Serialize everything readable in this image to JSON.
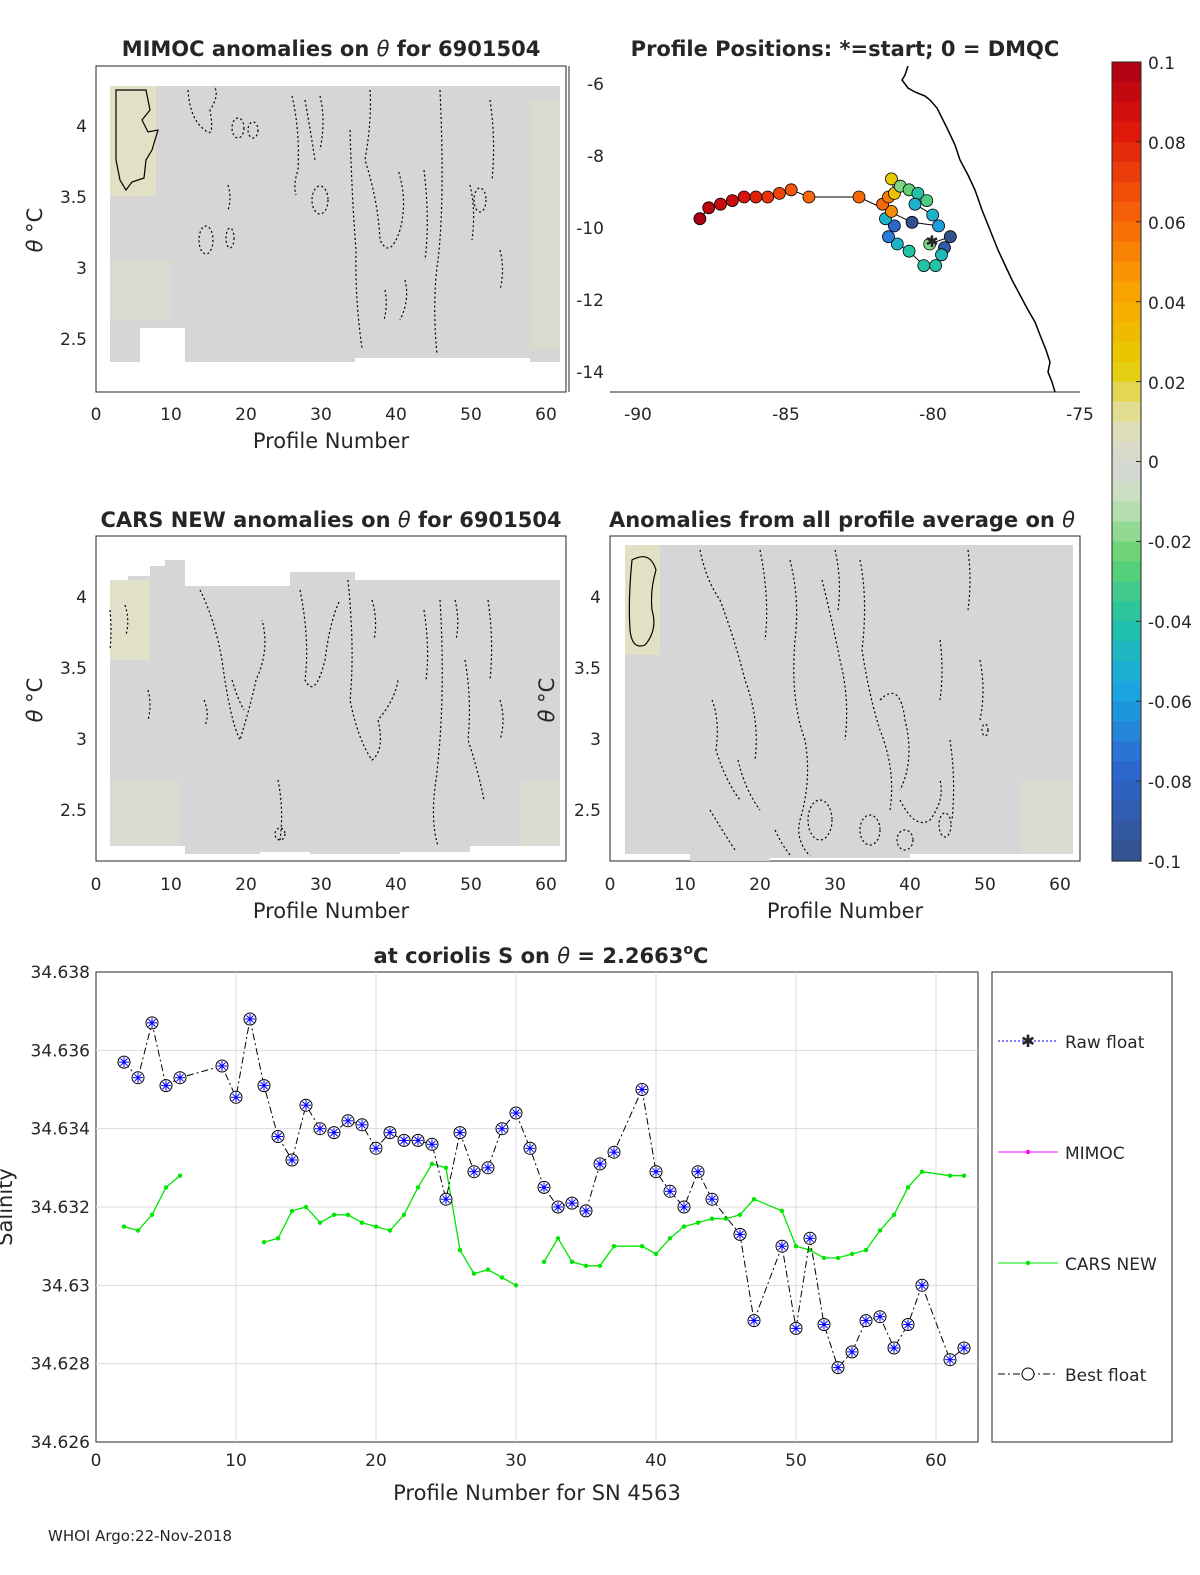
{
  "footer": "WHOI Argo:22-Nov-2018",
  "colors": {
    "axis": "#262626",
    "grid": "#dcdcdc",
    "field": "#d6d6d6",
    "warm": "#e6e3c0"
  },
  "panels": {
    "mimoc": {
      "title_prefix": "MIMOC anomalies on ",
      "title_var": "θ",
      "title_suffix": "  for 6901504",
      "ylabel_var": "θ",
      "ylabel_unit": "°C",
      "xlabel": "Profile Number",
      "xticks": [
        "0",
        "10",
        "20",
        "30",
        "40",
        "50",
        "60"
      ],
      "yticks": [
        "2.5",
        "3",
        "3.5",
        "4"
      ]
    },
    "positions": {
      "title": "Profile Positions: *=start; 0 = DMQC",
      "xticks": [
        "-90",
        "-85",
        "-80",
        "-75"
      ],
      "yticks": [
        "-6",
        "-8",
        "-10",
        "-12",
        "-14"
      ]
    },
    "cars": {
      "title_prefix": "CARS NEW anomalies on ",
      "title_var": "θ",
      "title_suffix": " for 6901504",
      "ylabel_var": "θ",
      "ylabel_unit": "°C",
      "xlabel": "Profile Number",
      "xticks": [
        "0",
        "10",
        "20",
        "30",
        "40",
        "50",
        "60"
      ],
      "yticks": [
        "2.5",
        "3",
        "3.5",
        "4"
      ]
    },
    "allavg": {
      "title_prefix": "Anomalies from all profile average on ",
      "title_var": "θ",
      "ylabel_var": "θ",
      "ylabel_unit": "°C",
      "xlabel": "Profile Number",
      "xticks": [
        "0",
        "10",
        "20",
        "30",
        "40",
        "50",
        "60"
      ],
      "yticks": [
        "2.5",
        "3",
        "3.5",
        "4"
      ]
    },
    "colorbar": {
      "labels": [
        "0.1",
        "0.08",
        "0.06",
        "0.04",
        "0.02",
        "0",
        "-0.02",
        "-0.04",
        "-0.06",
        "-0.08",
        "-0.1"
      ]
    }
  },
  "chart_data": {
    "type": "line",
    "title_prefix": "at coriolis S on ",
    "title_var": "θ",
    "title_eq": " = 2.2663",
    "title_unit_sup": "o",
    "title_unit": "C",
    "xlabel": "Profile Number for SN 4563",
    "ylabel": "Salinity",
    "xlim": [
      0,
      63
    ],
    "ylim": [
      34.626,
      34.638
    ],
    "xticks": [
      0,
      10,
      20,
      30,
      40,
      50,
      60
    ],
    "yticks": [
      34.626,
      34.628,
      34.63,
      34.632,
      34.634,
      34.636,
      34.638
    ],
    "ytick_labels": [
      "34.626",
      "34.628",
      "34.63",
      "34.632",
      "34.634",
      "34.636",
      "34.638"
    ],
    "grid": true,
    "legend_position": "right",
    "legend": [
      "Raw float",
      "MIMOC",
      "CARS NEW",
      "Best float"
    ],
    "series": [
      {
        "name": "Best float",
        "color": "#000000",
        "x": [
          2,
          3,
          4,
          5,
          6,
          9,
          10,
          11,
          12,
          13,
          14,
          15,
          16,
          17,
          18,
          19,
          20,
          21,
          22,
          23,
          24,
          25,
          26,
          27,
          28,
          29,
          30,
          31,
          32,
          33,
          34,
          35,
          36,
          37,
          39,
          40,
          41,
          42,
          43,
          44,
          46,
          47,
          49,
          50,
          51,
          52,
          53,
          54,
          55,
          56,
          57,
          58,
          59,
          61,
          62
        ],
        "values": [
          34.6357,
          34.6353,
          34.6367,
          34.6351,
          34.6353,
          34.6356,
          34.6348,
          34.6368,
          34.6351,
          34.6338,
          34.6332,
          34.6346,
          34.634,
          34.6339,
          34.6342,
          34.6341,
          34.6335,
          34.6339,
          34.6337,
          34.6337,
          34.6336,
          34.6322,
          34.6339,
          34.6329,
          34.633,
          34.634,
          34.6344,
          34.6335,
          34.6325,
          34.632,
          34.6321,
          34.6319,
          34.6331,
          34.6334,
          34.635,
          34.6329,
          34.6324,
          34.632,
          34.6329,
          34.6322,
          34.6313,
          34.6291,
          34.631,
          34.6289,
          34.6312,
          34.629,
          34.6279,
          34.6283,
          34.6291,
          34.6292,
          34.6284,
          34.629,
          34.63,
          34.6281,
          34.6284
        ]
      },
      {
        "name": "CARS NEW",
        "color": "#00e600",
        "segments": [
          {
            "x": [
              2,
              3,
              4,
              5,
              6
            ],
            "values": [
              34.6315,
              34.6314,
              34.6318,
              34.6325,
              34.6328
            ]
          },
          {
            "x": [
              12,
              13,
              14,
              15,
              16,
              17,
              18,
              19,
              20,
              21,
              22,
              23,
              24,
              25,
              26,
              27,
              28,
              29,
              30
            ],
            "values": [
              34.6311,
              34.6312,
              34.6319,
              34.632,
              34.6316,
              34.6318,
              34.6318,
              34.6316,
              34.6315,
              34.6314,
              34.6318,
              34.6325,
              34.6331,
              34.633,
              34.6309,
              34.6303,
              34.6304,
              34.6302,
              34.63
            ]
          },
          {
            "x": [
              32,
              33,
              34,
              35,
              36,
              37,
              39,
              40,
              41,
              42,
              43,
              44,
              45,
              46,
              47,
              49,
              50,
              51,
              52,
              53,
              54,
              55,
              56,
              57,
              58,
              59,
              61,
              62
            ],
            "values": [
              34.6306,
              34.6312,
              34.6306,
              34.6305,
              34.6305,
              34.631,
              34.631,
              34.6308,
              34.6312,
              34.6315,
              34.6316,
              34.6317,
              34.6317,
              34.6318,
              34.6322,
              34.6319,
              34.631,
              34.6309,
              34.6307,
              34.6307,
              34.6308,
              34.6309,
              34.6314,
              34.6318,
              34.6325,
              34.6329,
              34.6328,
              34.6328
            ]
          }
        ]
      }
    ]
  },
  "track_data": {
    "type": "scatter",
    "xlim": [
      -91.5,
      -75
    ],
    "ylim": [
      -14.5,
      -5.5
    ],
    "points": [
      {
        "lon": -80.1,
        "lat": -10.4,
        "v": -0.02
      },
      {
        "lon": -79.4,
        "lat": -10.2,
        "v": -0.1
      },
      {
        "lon": -79.6,
        "lat": -10.5,
        "v": -0.09
      },
      {
        "lon": -79.7,
        "lat": -10.7,
        "v": -0.045
      },
      {
        "lon": -79.9,
        "lat": -11.0,
        "v": -0.04
      },
      {
        "lon": -80.3,
        "lat": -11.0,
        "v": -0.04
      },
      {
        "lon": -80.8,
        "lat": -10.6,
        "v": -0.04
      },
      {
        "lon": -81.2,
        "lat": -10.4,
        "v": -0.05
      },
      {
        "lon": -81.5,
        "lat": -10.2,
        "v": -0.07
      },
      {
        "lon": -81.3,
        "lat": -9.9,
        "v": -0.08
      },
      {
        "lon": -81.6,
        "lat": -9.7,
        "v": -0.05
      },
      {
        "lon": -81.4,
        "lat": -9.5,
        "v": 0.05
      },
      {
        "lon": -81.7,
        "lat": -9.3,
        "v": 0.06
      },
      {
        "lon": -81.5,
        "lat": -9.1,
        "v": 0.055
      },
      {
        "lon": -81.3,
        "lat": -9.0,
        "v": 0.03
      },
      {
        "lon": -81.4,
        "lat": -8.6,
        "v": 0.025
      },
      {
        "lon": -81.1,
        "lat": -8.8,
        "v": -0.02
      },
      {
        "lon": -80.8,
        "lat": -8.9,
        "v": -0.025
      },
      {
        "lon": -80.5,
        "lat": -9.0,
        "v": -0.04
      },
      {
        "lon": -80.2,
        "lat": -9.2,
        "v": -0.03
      },
      {
        "lon": -80.6,
        "lat": -9.3,
        "v": -0.05
      },
      {
        "lon": -80.0,
        "lat": -9.6,
        "v": -0.05
      },
      {
        "lon": -79.8,
        "lat": -9.9,
        "v": -0.06
      },
      {
        "lon": -80.7,
        "lat": -9.8,
        "v": -0.1
      },
      {
        "lon": -82.5,
        "lat": -9.1,
        "v": 0.06
      },
      {
        "lon": -84.2,
        "lat": -9.1,
        "v": 0.06
      },
      {
        "lon": -84.8,
        "lat": -8.9,
        "v": 0.065
      },
      {
        "lon": -85.2,
        "lat": -9.0,
        "v": 0.07
      },
      {
        "lon": -85.6,
        "lat": -9.1,
        "v": 0.075
      },
      {
        "lon": -86.0,
        "lat": -9.1,
        "v": 0.08
      },
      {
        "lon": -86.4,
        "lat": -9.1,
        "v": 0.085
      },
      {
        "lon": -86.8,
        "lat": -9.2,
        "v": 0.09
      },
      {
        "lon": -87.2,
        "lat": -9.3,
        "v": 0.09
      },
      {
        "lon": -87.6,
        "lat": -9.4,
        "v": 0.095
      },
      {
        "lon": -87.9,
        "lat": -9.7,
        "v": 0.1
      }
    ]
  }
}
